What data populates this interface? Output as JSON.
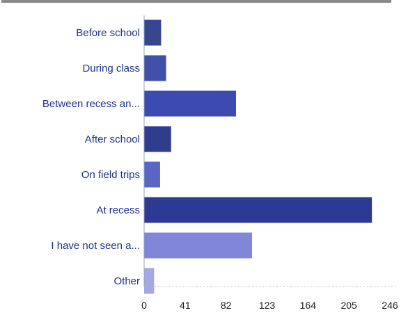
{
  "chart_data": {
    "type": "bar",
    "orientation": "horizontal",
    "categories": [
      "Before school",
      "During class",
      "Between recess an...",
      "After school",
      "On field trips",
      "At recess",
      "I have not seen a...",
      "Other"
    ],
    "values": [
      17,
      22,
      92,
      27,
      16,
      228,
      108,
      10
    ],
    "colors": [
      "#37478f",
      "#4050a8",
      "#3d4bb0",
      "#2f3d8e",
      "#5b66c4",
      "#2c3a94",
      "#8186d8",
      "#a4a7e4"
    ],
    "title": "",
    "xlabel": "",
    "ylabel": "",
    "xlim": [
      0,
      246
    ],
    "xticks": [
      0,
      41,
      82,
      123,
      164,
      205,
      246
    ],
    "grid": false,
    "legend": "none"
  }
}
